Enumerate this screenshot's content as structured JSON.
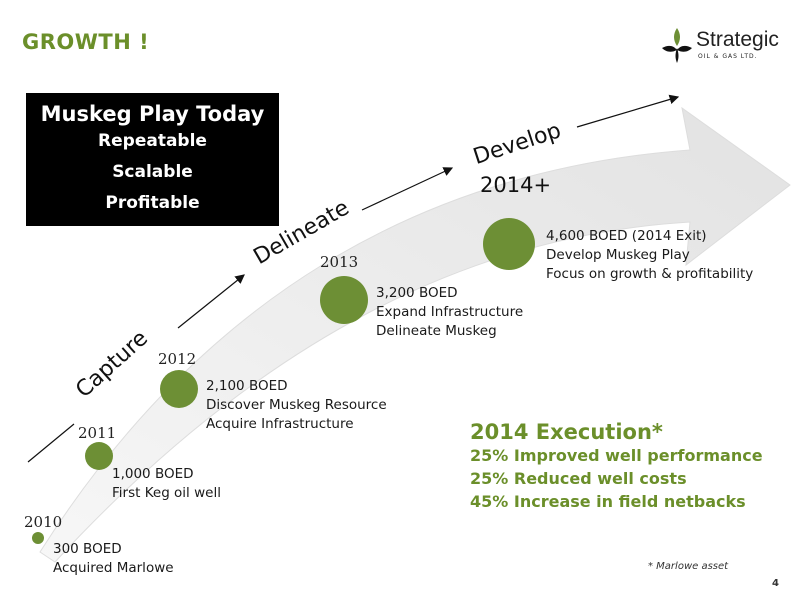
{
  "slide": {
    "title": "GROWTH !",
    "page_number": "4",
    "footnote": "* Marlowe asset"
  },
  "logo": {
    "word": "Strategic",
    "sub": "OIL & GAS LTD."
  },
  "play_box": {
    "heading": "Muskeg Play Today",
    "lines": [
      "Repeatable",
      "Scalable",
      "Profitable"
    ]
  },
  "stages": {
    "capture": "Capture",
    "delineate": "Delineate",
    "develop_line1": "Develop",
    "develop_line2": "2014+"
  },
  "milestones": [
    {
      "year": "2010",
      "lines": [
        "300 BOED",
        "Acquired Marlowe"
      ]
    },
    {
      "year": "2011",
      "lines": [
        "1,000 BOED",
        "First Keg oil well"
      ]
    },
    {
      "year": "2012",
      "lines": [
        "2,100 BOED",
        "Discover Muskeg Resource",
        "Acquire Infrastructure"
      ]
    },
    {
      "year": "2013",
      "lines": [
        "3,200 BOED",
        "Expand Infrastructure",
        "Delineate Muskeg"
      ]
    },
    {
      "year": "",
      "lines": [
        "4,600 BOED (2014 Exit)",
        "Develop Muskeg Play",
        "Focus on growth & profitability"
      ]
    }
  ],
  "execution": {
    "title": "2014 Execution",
    "asterisk": "*",
    "items": [
      "25% Improved well performance",
      "25% Reduced well costs",
      "45% Increase in field netbacks"
    ]
  },
  "colors": {
    "accent_green": "#6b8f2a",
    "circle_green": "#6d8f35",
    "arrow_gray": "#e8e8e8"
  }
}
